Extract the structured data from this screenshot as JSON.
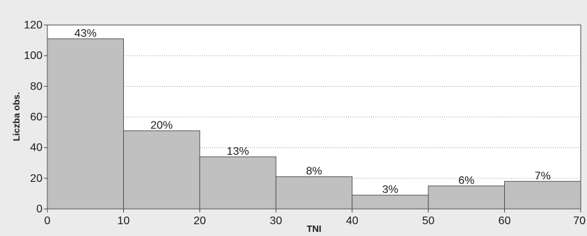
{
  "chart_data": {
    "type": "bar",
    "title": "",
    "xlabel": "TNI",
    "ylabel": "Liczba obs.",
    "bins": [
      [
        0,
        10
      ],
      [
        10,
        20
      ],
      [
        20,
        30
      ],
      [
        30,
        40
      ],
      [
        40,
        50
      ],
      [
        50,
        60
      ],
      [
        60,
        70
      ]
    ],
    "values": [
      111,
      51,
      34,
      21,
      9,
      15,
      18
    ],
    "data_labels": [
      "43%",
      "20%",
      "13%",
      "8%",
      "3%",
      "6%",
      "7%"
    ],
    "xlim": [
      0,
      70
    ],
    "ylim": [
      0,
      120
    ],
    "x_ticks": [
      "0",
      "10",
      "20",
      "30",
      "40",
      "50",
      "60",
      "70"
    ],
    "y_ticks": [
      "0",
      "20",
      "40",
      "60",
      "80",
      "100",
      "120"
    ],
    "grid": "horizontal dotted",
    "bar_color": "#c0c0c0",
    "bar_edge_color": "#555555",
    "background_color": "#ebebeb"
  }
}
